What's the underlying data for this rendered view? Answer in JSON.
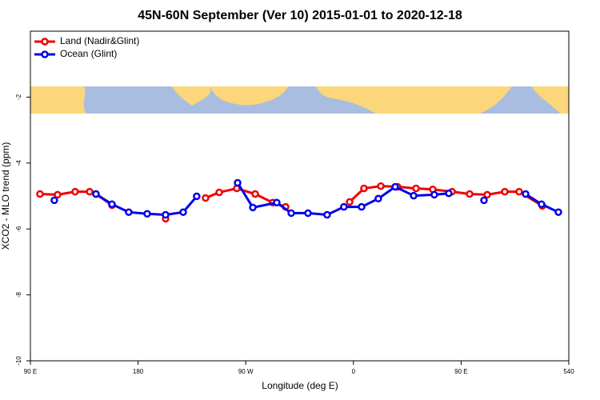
{
  "chart_data": {
    "type": "line",
    "title": "45N-60N September (Ver 10)   2015-01-01 to 2020-12-18",
    "xlabel": "Longitude (deg E)",
    "ylabel": "XCO2 - MLO trend (ppm)",
    "xlim": [
      90,
      540
    ],
    "xticks": [
      {
        "value": 90,
        "label": "90 E"
      },
      180,
      {
        "value": 270,
        "label": "90 W"
      },
      {
        "value": 360,
        "label": "0"
      },
      {
        "value": 450,
        "label": "90 E"
      },
      540
    ],
    "ylim": [
      -10,
      0
    ],
    "yticks": [
      -2,
      -4,
      -6,
      -8,
      -10
    ],
    "legend": "top-left",
    "series": [
      {
        "name": "Land (Nadir&Glint)",
        "color": "#ee0000",
        "x": [
          98,
          112.7,
          127.4,
          139.5,
          144.8,
          158.2,
          null,
          203,
          null,
          236.4,
          247.8,
          262.5,
          277.9,
          292.6,
          303.3,
          null,
          356.8,
          368.8,
          382.9,
          396.9,
          412.3,
          426.3,
          442.4,
          457.1,
          471.8,
          486.5,
          498.5,
          517.9
        ],
        "values": [
          -4.94,
          -4.96,
          -4.87,
          -4.87,
          -4.94,
          -5.28,
          null,
          -5.69,
          null,
          -5.06,
          -4.89,
          -4.77,
          -4.94,
          -5.2,
          -5.33,
          null,
          -5.18,
          -4.77,
          -4.7,
          -4.72,
          -4.77,
          -4.8,
          -4.87,
          -4.94,
          -4.96,
          -4.87,
          -4.87,
          -5.3
        ]
      },
      {
        "name": "Ocean (Glint)",
        "color": "#0000ee",
        "x": [
          110,
          null,
          144.8,
          158.2,
          172.2,
          187.6,
          203,
          217.7,
          229,
          null,
          263.2,
          275.9,
          295.9,
          308,
          322,
          338,
          352,
          366.8,
          380.8,
          394.9,
          410.3,
          427.6,
          439.7,
          null,
          469.1,
          null,
          503.9,
          517.2,
          531.3
        ],
        "values": [
          -5.13,
          null,
          -4.94,
          -5.25,
          -5.49,
          -5.54,
          -5.57,
          -5.49,
          -5.01,
          null,
          -4.6,
          -5.35,
          -5.2,
          -5.52,
          -5.52,
          -5.57,
          -5.33,
          -5.33,
          -5.08,
          -4.72,
          -4.99,
          -4.96,
          -4.92,
          null,
          -5.13,
          null,
          -4.94,
          -5.25,
          -5.49
        ]
      }
    ]
  }
}
